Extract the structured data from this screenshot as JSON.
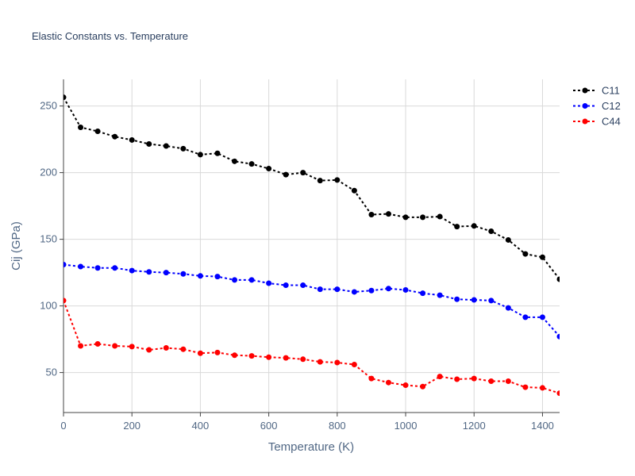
{
  "chart_data": {
    "type": "line",
    "title": "Elastic Constants vs. Temperature",
    "xlabel": "Temperature (K)",
    "ylabel": "Cij (GPa)",
    "xlim": [
      0,
      1450
    ],
    "ylim": [
      20,
      270
    ],
    "xticks": [
      0,
      200,
      400,
      600,
      800,
      1000,
      1200,
      1400
    ],
    "yticks": [
      50,
      100,
      150,
      200,
      250
    ],
    "grid": true,
    "legend_position": "top-right",
    "x": [
      0,
      50,
      100,
      150,
      200,
      250,
      300,
      350,
      400,
      450,
      500,
      550,
      600,
      650,
      700,
      750,
      800,
      850,
      900,
      950,
      1000,
      1050,
      1100,
      1150,
      1200,
      1250,
      1300,
      1350,
      1400,
      1450
    ],
    "series": [
      {
        "name": "C11",
        "color": "#000000",
        "values": [
          256.5,
          234,
          231,
          227,
          224.5,
          221.5,
          220,
          218,
          213.5,
          214.5,
          208.5,
          206.5,
          203,
          198.5,
          200,
          194,
          194.5,
          186.5,
          168.5,
          169,
          166.5,
          166.5,
          167,
          159.5,
          160,
          156,
          149.5,
          139,
          136.5,
          120
        ]
      },
      {
        "name": "C12",
        "color": "#0000ff",
        "values": [
          131,
          129.5,
          128.5,
          128.5,
          126.5,
          125.5,
          125,
          124,
          122.5,
          122,
          119.5,
          119.5,
          117,
          115.5,
          115.5,
          112.5,
          112.5,
          110.5,
          111.5,
          113,
          112,
          109.5,
          108,
          105,
          104.5,
          104,
          98.5,
          91.5,
          91.5,
          77
        ]
      },
      {
        "name": "C44",
        "color": "#ff0000",
        "values": [
          104,
          70,
          71.5,
          70,
          69.5,
          67,
          68.5,
          67.5,
          64.5,
          65,
          63,
          62.5,
          61.5,
          61,
          60,
          58,
          57.5,
          56,
          45.5,
          42.5,
          40.5,
          39.5,
          47,
          45,
          45.5,
          43.5,
          43.5,
          39,
          38.5,
          34.5
        ]
      }
    ]
  }
}
